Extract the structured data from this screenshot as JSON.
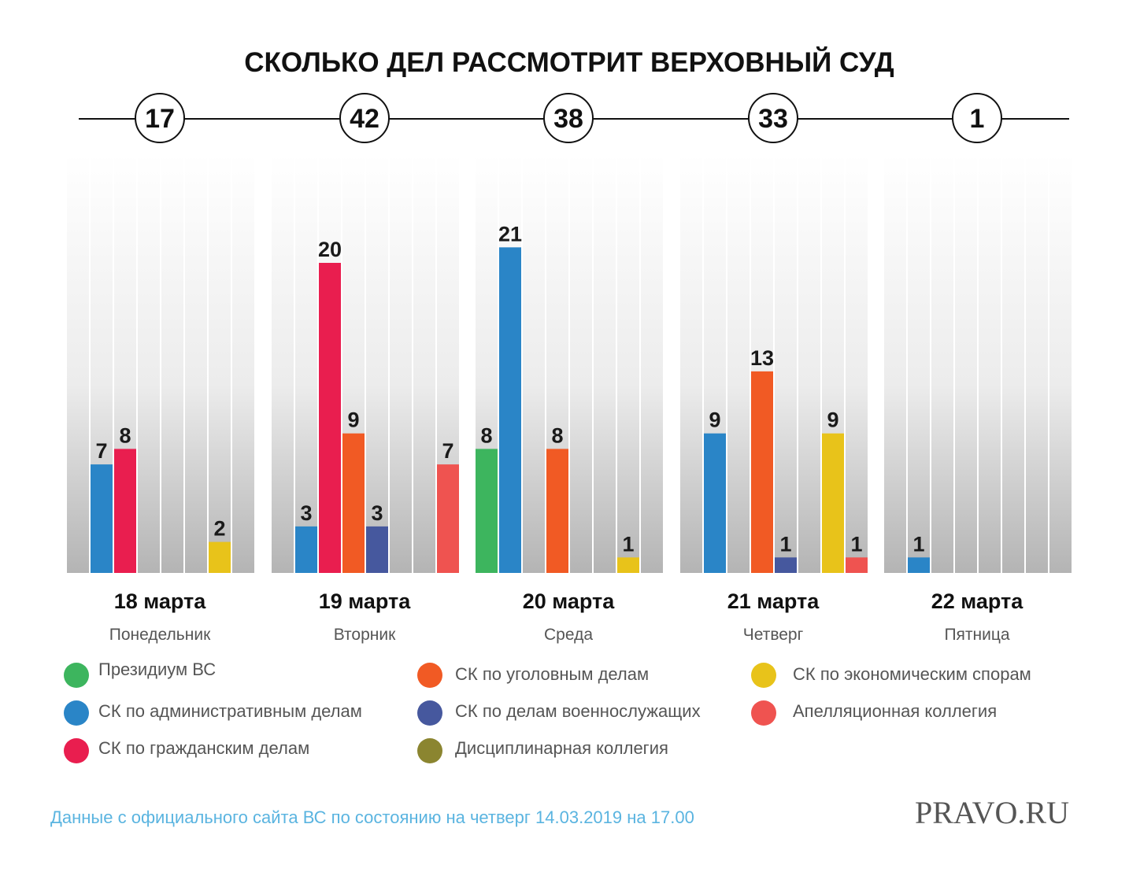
{
  "chart_data": {
    "type": "bar",
    "title": "СКОЛЬКО ДЕЛ РАССМОТРИТ ВЕРХОВНЫЙ СУД",
    "categories": [
      "18 марта",
      "19 марта",
      "20 марта",
      "21 марта",
      "22 марта"
    ],
    "weekdays": [
      "Понедельник",
      "Вторник",
      "Среда",
      "Четверг",
      "Пятница"
    ],
    "totals": [
      "17",
      "42",
      "38",
      "33",
      "1"
    ],
    "ylim": [
      0,
      22
    ],
    "series": [
      {
        "name": "Президиум ВС",
        "color": "#3db55e",
        "values": [
          null,
          null,
          8,
          null,
          null
        ]
      },
      {
        "name": "СК по административным делам",
        "color": "#2a85c7",
        "values": [
          7,
          3,
          21,
          9,
          1
        ]
      },
      {
        "name": "СК по гражданским делам",
        "color": "#e91e4f",
        "values": [
          8,
          20,
          null,
          null,
          null
        ]
      },
      {
        "name": "СК по уголовным делам",
        "color": "#f15a24",
        "values": [
          null,
          9,
          8,
          13,
          null
        ]
      },
      {
        "name": "СК по делам военнослужащих",
        "color": "#46589e",
        "values": [
          null,
          3,
          null,
          1,
          null
        ]
      },
      {
        "name": "Дисциплинарная коллегия",
        "color": "#8b8530",
        "values": [
          null,
          null,
          null,
          null,
          null
        ]
      },
      {
        "name": "СК по экономическим спорам",
        "color": "#e8c31a",
        "values": [
          2,
          null,
          1,
          9,
          null
        ]
      },
      {
        "name": "Апелляционная коллегия",
        "color": "#ef5350",
        "values": [
          null,
          7,
          null,
          1,
          null
        ]
      }
    ],
    "source": "Данные с официального сайта ВС по состоянию на четверг 14.03.2019 на 17.00",
    "logo": "PRAVO.RU"
  }
}
